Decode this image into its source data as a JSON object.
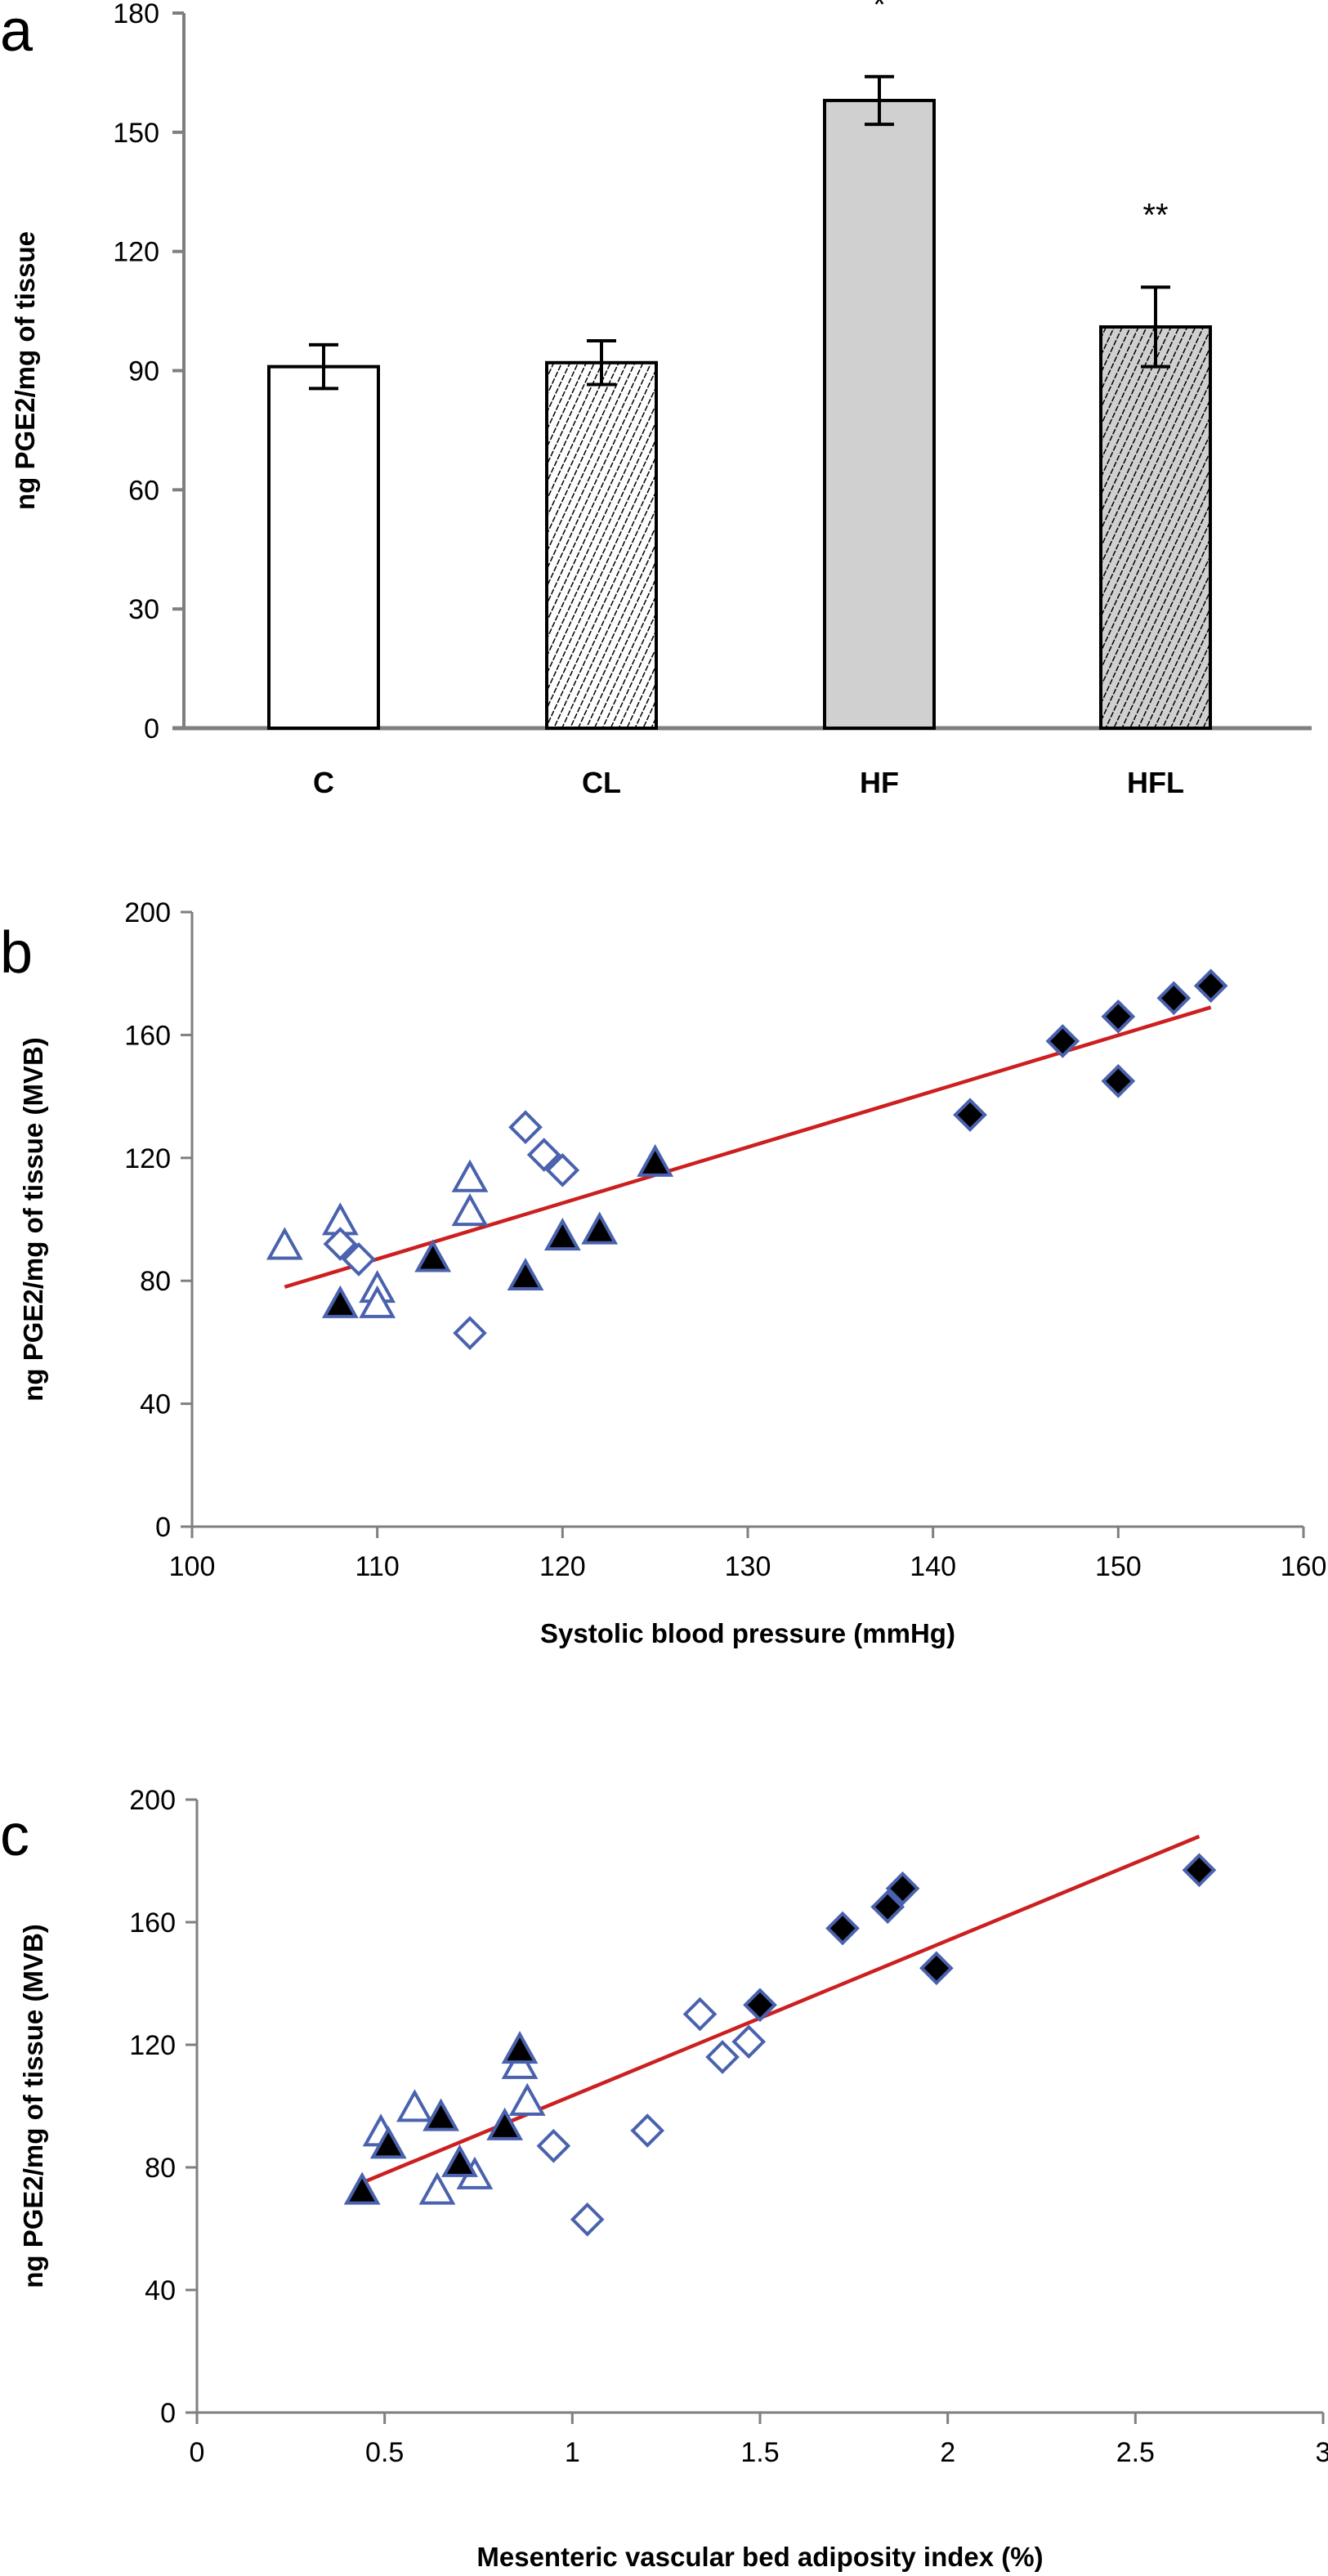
{
  "chart_data": [
    {
      "panel": "a",
      "type": "bar",
      "title": "",
      "xlabel": "",
      "ylabel": "ng PGE2/mg of tissue",
      "ylim": [
        0,
        180
      ],
      "yticks": [
        0,
        30,
        60,
        90,
        120,
        150,
        180
      ],
      "grid": false,
      "categories": [
        "C",
        "CL",
        "HF",
        "HFL"
      ],
      "values": [
        91,
        92,
        158,
        101
      ],
      "errors": [
        5.5,
        5.5,
        6,
        10
      ],
      "fills": [
        "white",
        "hatched-white",
        "#d0d0d0",
        "hatched-grey"
      ],
      "annotations": [
        "",
        "",
        "*",
        "**"
      ]
    },
    {
      "panel": "b",
      "type": "scatter",
      "title": "",
      "xlabel": "Systolic blood pressure (mmHg)",
      "ylabel": "ng PGE2/mg of tissue (MVB)",
      "xlim": [
        100,
        160
      ],
      "ylim": [
        0,
        200
      ],
      "xticks": [
        100,
        110,
        120,
        130,
        140,
        150,
        160
      ],
      "yticks": [
        0,
        40,
        80,
        120,
        160,
        200
      ],
      "grid": false,
      "series": [
        {
          "name": "open triangles",
          "marker": "triangle-open",
          "points": [
            [
              105,
              91
            ],
            [
              108,
              99
            ],
            [
              110,
              77
            ],
            [
              110,
              72
            ],
            [
              115,
              113
            ],
            [
              115,
              102
            ]
          ]
        },
        {
          "name": "filled triangles",
          "marker": "triangle-filled",
          "points": [
            [
              108,
              72
            ],
            [
              113,
              87
            ],
            [
              118,
              81
            ],
            [
              120,
              94
            ],
            [
              122,
              96
            ],
            [
              125,
              118
            ]
          ]
        },
        {
          "name": "open diamonds",
          "marker": "diamond-open",
          "points": [
            [
              108,
              92
            ],
            [
              109,
              87
            ],
            [
              115,
              63
            ],
            [
              118,
              130
            ],
            [
              119,
              121
            ],
            [
              120,
              116
            ]
          ]
        },
        {
          "name": "filled diamonds",
          "marker": "diamond-filled",
          "points": [
            [
              142,
              134
            ],
            [
              147,
              158
            ],
            [
              150,
              166
            ],
            [
              150,
              145
            ],
            [
              153,
              172
            ],
            [
              155,
              176
            ]
          ]
        }
      ],
      "trendline": {
        "from": [
          105,
          78
        ],
        "to": [
          155,
          169
        ],
        "color": "#cc1f1f"
      }
    },
    {
      "panel": "c",
      "type": "scatter",
      "title": "",
      "xlabel": "Mesenteric vascular bed adiposity index (%)",
      "ylabel": "ng PGE2/mg of tissue (MVB)",
      "xlim": [
        0,
        3
      ],
      "ylim": [
        0,
        200
      ],
      "xticks": [
        "0",
        "0.5",
        "1",
        "1.5",
        "2",
        "2.5",
        "3"
      ],
      "yticks": [
        0,
        40,
        80,
        120,
        160,
        200
      ],
      "grid": false,
      "series": [
        {
          "name": "open triangles",
          "marker": "triangle-open",
          "points": [
            [
              0.49,
              91
            ],
            [
              0.58,
              99
            ],
            [
              0.64,
              72
            ],
            [
              0.74,
              77
            ],
            [
              0.86,
              113
            ],
            [
              0.88,
              101
            ]
          ]
        },
        {
          "name": "filled triangles",
          "marker": "triangle-filled",
          "points": [
            [
              0.44,
              72
            ],
            [
              0.51,
              87
            ],
            [
              0.65,
              96
            ],
            [
              0.7,
              81
            ],
            [
              0.82,
              93
            ],
            [
              0.86,
              118
            ]
          ]
        },
        {
          "name": "open diamonds",
          "marker": "diamond-open",
          "points": [
            [
              0.95,
              87
            ],
            [
              1.04,
              63
            ],
            [
              1.2,
              92
            ],
            [
              1.34,
              130
            ],
            [
              1.4,
              116
            ],
            [
              1.47,
              121
            ]
          ]
        },
        {
          "name": "filled diamonds",
          "marker": "diamond-filled",
          "points": [
            [
              1.5,
              133
            ],
            [
              1.72,
              158
            ],
            [
              1.84,
              165
            ],
            [
              1.88,
              171
            ],
            [
              1.97,
              145
            ],
            [
              2.67,
              177
            ]
          ]
        }
      ],
      "trendline": {
        "from": [
          0.44,
          75
        ],
        "to": [
          2.67,
          188
        ],
        "color": "#cc1f1f"
      }
    }
  ],
  "colors": {
    "marker_edge": "#4a62ad",
    "trendline": "#cc1f1f",
    "axis": "#7f7f7f",
    "hf_bar": "#d0d0d0"
  }
}
